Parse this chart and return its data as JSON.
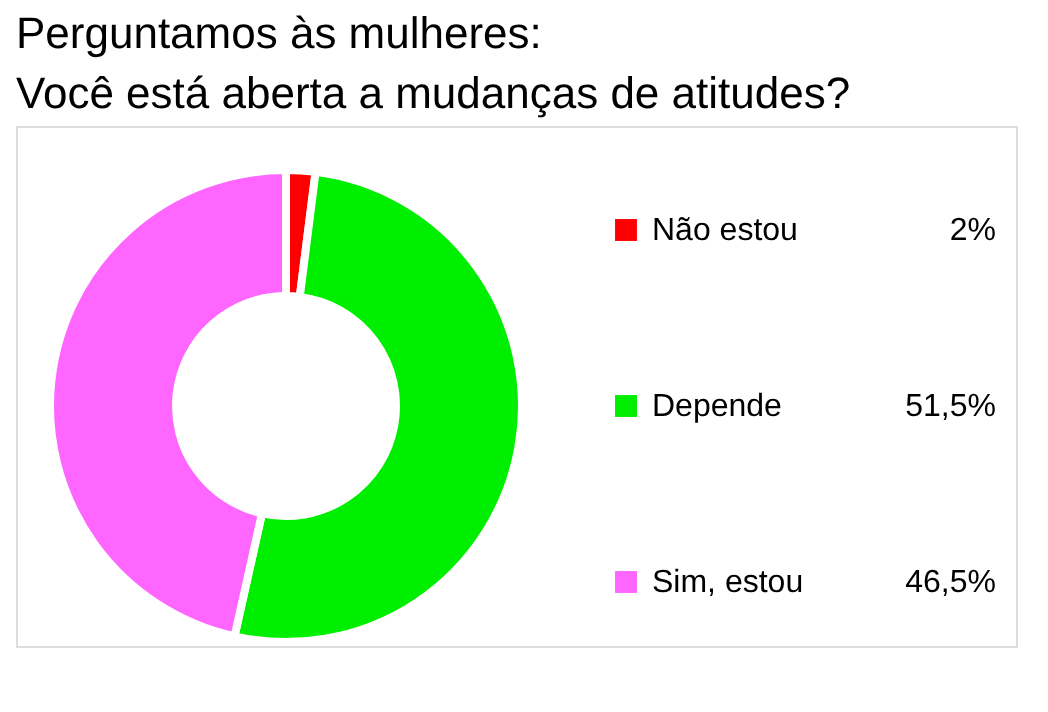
{
  "chart_data": {
    "type": "donut",
    "title": [
      "Perguntamos  às mulheres:",
      "Você está aberta a mudanças de atitudes?"
    ],
    "categories": [
      "Não estou",
      "Depende",
      "Sim, estou"
    ],
    "values": [
      2,
      51.5,
      46.5
    ],
    "colors": [
      "#ff0000",
      "#00ee00",
      "#ff66ff"
    ],
    "value_labels": [
      "2%",
      "51,5%",
      "46,5%"
    ],
    "legend": "right"
  }
}
